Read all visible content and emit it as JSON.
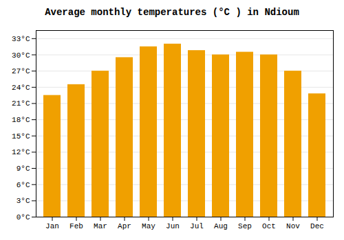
{
  "chart_data": {
    "type": "bar",
    "title": "Average monthly temperatures (°C ) in Ndioum",
    "categories": [
      "Jan",
      "Feb",
      "Mar",
      "Apr",
      "May",
      "Jun",
      "Jul",
      "Aug",
      "Sep",
      "Oct",
      "Nov",
      "Dec"
    ],
    "values": [
      22.5,
      24.5,
      27.0,
      29.5,
      31.5,
      32.0,
      30.8,
      30.0,
      30.5,
      30.0,
      27.0,
      22.8
    ],
    "color": "#F0A000",
    "ylim": [
      0,
      34.5
    ],
    "yticks": [
      {
        "value": 0,
        "label": "0°C"
      },
      {
        "value": 3,
        "label": "3°C"
      },
      {
        "value": 6,
        "label": "6°C"
      },
      {
        "value": 9,
        "label": "9°C"
      },
      {
        "value": 12,
        "label": "12°C"
      },
      {
        "value": 15,
        "label": "15°C"
      },
      {
        "value": 18,
        "label": "18°C"
      },
      {
        "value": 21,
        "label": "21°C"
      },
      {
        "value": 24,
        "label": "24°C"
      },
      {
        "value": 27,
        "label": "27°C"
      },
      {
        "value": 30,
        "label": "30°C"
      },
      {
        "value": 33,
        "label": "33°C"
      }
    ],
    "grid": true
  }
}
